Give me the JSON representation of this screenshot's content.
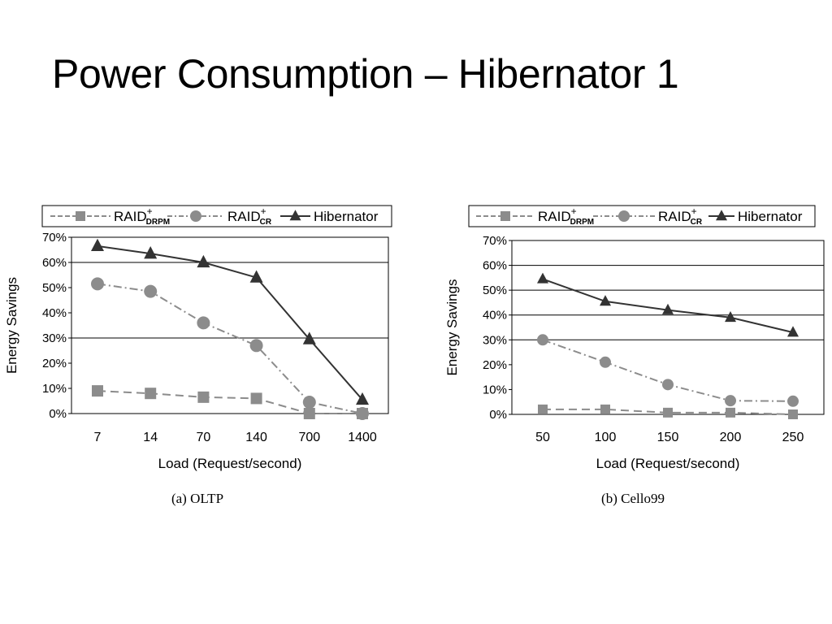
{
  "slide": {
    "title": "Power Consumption – Hibernator 1"
  },
  "chart_data": [
    {
      "type": "line",
      "caption": "(a) OLTP",
      "xlabel": "Load (Request/second)",
      "ylabel": "Energy Savings",
      "categories": [
        "7",
        "14",
        "70",
        "140",
        "700",
        "1400"
      ],
      "ylim": [
        0,
        70
      ],
      "yticks": [
        "0%",
        "10%",
        "20%",
        "30%",
        "40%",
        "50%",
        "60%",
        "70%"
      ],
      "grid": "horizontal at 30%, 60%",
      "legend_position": "top",
      "series": [
        {
          "name": "RAID",
          "sup": "+",
          "sub": "DRPM",
          "marker": "square",
          "color": "#8c8c8c",
          "dash": "long-dash",
          "values": [
            9,
            8,
            6.5,
            6,
            0,
            0
          ]
        },
        {
          "name": "RAID",
          "sup": "+",
          "sub": "CR",
          "marker": "circle",
          "color": "#8c8c8c",
          "dash": "dash-dot",
          "values": [
            51.5,
            48.5,
            36,
            27,
            4.5,
            0
          ]
        },
        {
          "name": "Hibernator",
          "marker": "triangle",
          "color": "#333333",
          "dash": "solid",
          "values": [
            66.5,
            63.5,
            60,
            54,
            29.5,
            5.5
          ]
        }
      ]
    },
    {
      "type": "line",
      "caption": "(b) Cello99",
      "xlabel": "Load (Request/second)",
      "ylabel": "Energy Savings",
      "categories": [
        "50",
        "100",
        "150",
        "200",
        "250"
      ],
      "ylim": [
        0,
        70
      ],
      "yticks": [
        "0%",
        "10%",
        "20%",
        "30%",
        "40%",
        "50%",
        "60%",
        "70%"
      ],
      "grid": "horizontal at 30%, 40%, 50%, 60%",
      "legend_position": "top",
      "series": [
        {
          "name": "RAID",
          "sup": "+",
          "sub": "DRPM",
          "marker": "square",
          "color": "#8c8c8c",
          "dash": "long-dash",
          "values": [
            2,
            2,
            0.7,
            0.7,
            0
          ]
        },
        {
          "name": "RAID",
          "sup": "+",
          "sub": "CR",
          "marker": "circle",
          "color": "#8c8c8c",
          "dash": "dash-dot",
          "values": [
            30,
            21,
            12,
            5.5,
            5.3
          ]
        },
        {
          "name": "Hibernator",
          "marker": "triangle",
          "color": "#333333",
          "dash": "solid",
          "values": [
            54.5,
            45.5,
            42,
            39,
            33
          ]
        }
      ]
    }
  ]
}
